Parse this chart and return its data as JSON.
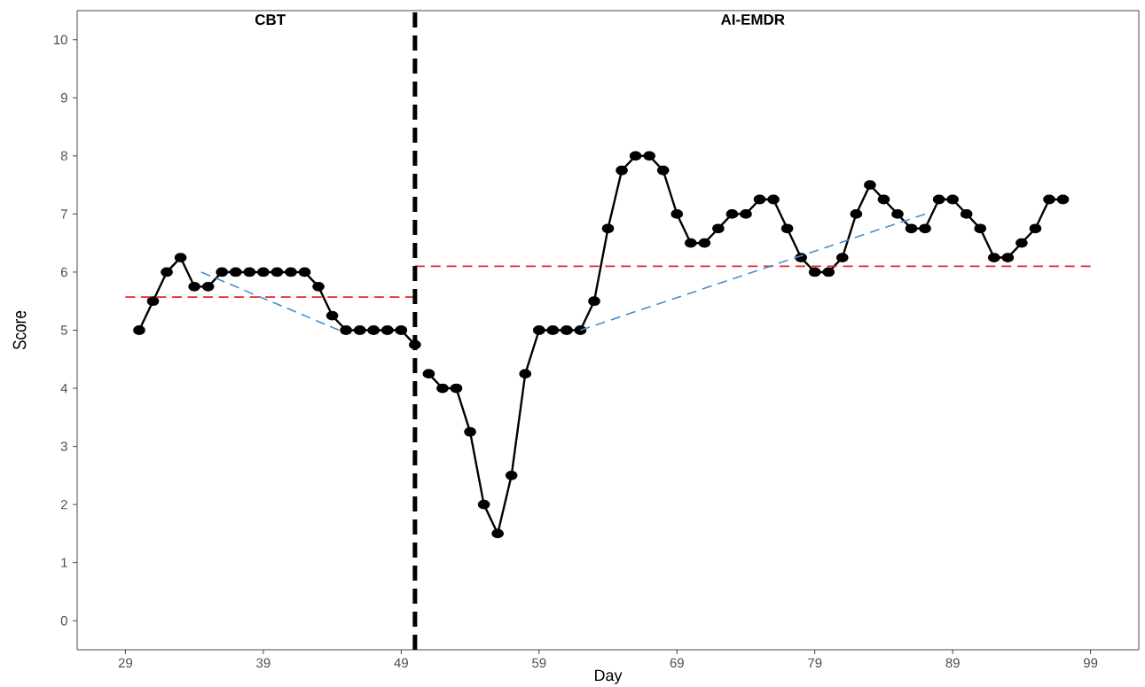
{
  "chart_data": {
    "type": "line",
    "xlabel": "Day",
    "ylabel": "Score",
    "xlim": [
      25.5,
      102.5
    ],
    "ylim": [
      -0.5,
      10.5
    ],
    "xticks": [
      29,
      39,
      49,
      59,
      69,
      79,
      89,
      99
    ],
    "yticks": [
      0,
      1,
      2,
      3,
      4,
      5,
      6,
      7,
      8,
      9,
      10
    ],
    "series": [
      {
        "color": "#000000",
        "marker": "circle",
        "line_style": "solid",
        "x": [
          30,
          31,
          32,
          33,
          34,
          35,
          36,
          37,
          38,
          39,
          40,
          41,
          42,
          43,
          44,
          45,
          46,
          47,
          48,
          49,
          50
        ],
        "values": [
          5.0,
          5.5,
          6.0,
          6.25,
          5.75,
          5.75,
          6.0,
          6.0,
          6.0,
          6.0,
          6.0,
          6.0,
          6.0,
          5.75,
          5.25,
          5.0,
          5.0,
          5.0,
          5.0,
          5.0,
          4.75
        ]
      },
      {
        "color": "#000000",
        "marker": "circle",
        "line_style": "solid",
        "x": [
          51,
          52,
          53,
          54,
          55,
          56,
          57,
          58,
          59,
          60,
          61,
          62,
          63,
          64,
          65,
          66,
          67,
          68,
          69,
          70,
          71,
          72,
          73,
          74,
          75,
          76,
          77,
          78,
          79,
          80,
          81,
          82,
          83,
          84,
          85,
          86,
          87,
          88,
          89,
          90,
          91,
          92,
          93,
          94,
          95,
          96,
          97
        ],
        "values": [
          4.25,
          4.0,
          4.0,
          3.25,
          2.0,
          1.5,
          2.5,
          4.25,
          5.0,
          5.0,
          5.0,
          5.0,
          5.5,
          6.75,
          7.75,
          8.0,
          8.0,
          7.75,
          7.0,
          6.5,
          6.5,
          6.75,
          7.0,
          7.0,
          7.25,
          7.25,
          6.75,
          6.25,
          6.0,
          6.0,
          6.25,
          7.0,
          7.5,
          7.25,
          7.0,
          6.75,
          6.75,
          7.25,
          7.25,
          7.0,
          6.75,
          6.25,
          6.25,
          6.5,
          6.75,
          7.25,
          7.25
        ]
      },
      {
        "type": "line",
        "color": "#e8242b",
        "marker": "none",
        "line_style": "dashed",
        "x": [
          29,
          50
        ],
        "values": [
          5.57,
          5.57
        ]
      },
      {
        "type": "line",
        "color": "#e8242b",
        "marker": "none",
        "line_style": "dashed",
        "x": [
          50,
          99
        ],
        "values": [
          6.1,
          6.1
        ]
      },
      {
        "type": "line",
        "color": "#4a8ccc",
        "marker": "none",
        "line_style": "dashed",
        "x": [
          34.5,
          44.5
        ],
        "values": [
          6.0,
          5.0
        ]
      },
      {
        "type": "line",
        "color": "#4a8ccc",
        "marker": "none",
        "line_style": "dashed",
        "x": [
          62,
          87
        ],
        "values": [
          5.0,
          7.0
        ]
      }
    ],
    "ref_lines": [
      {
        "axis": "x",
        "value": 50,
        "color": "#000000",
        "line_style": "dashed"
      }
    ],
    "annotations": [
      "CBT",
      "AI-EMDR"
    ]
  }
}
